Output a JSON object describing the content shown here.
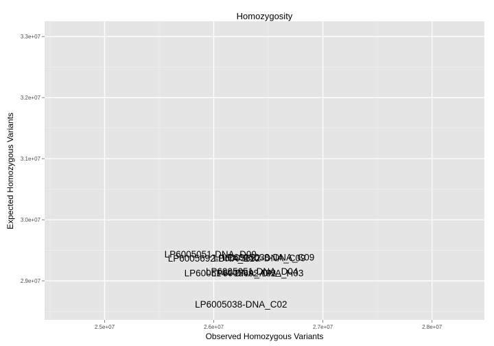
{
  "chart_data": {
    "type": "scatter",
    "title": "Homozygosity",
    "xlabel": "Observed Homozygous Variants",
    "ylabel": "Expected Homozygous Variants",
    "xlim": [
      24450000,
      28480000
    ],
    "ylim": [
      28360000,
      33250000
    ],
    "grid": true,
    "x_ticks": [
      {
        "value": 25000000,
        "label": "2.5e+07"
      },
      {
        "value": 26000000,
        "label": "2.6e+07"
      },
      {
        "value": 27000000,
        "label": "2.7e+07"
      },
      {
        "value": 28000000,
        "label": "2.8e+07"
      }
    ],
    "y_ticks": [
      {
        "value": 29000000,
        "label": "2.9e+07"
      },
      {
        "value": 30000000,
        "label": "3.0e+07"
      },
      {
        "value": 31000000,
        "label": "3.1e+07"
      },
      {
        "value": 32000000,
        "label": "3.2e+07"
      },
      {
        "value": 33000000,
        "label": "3.3e+07"
      }
    ],
    "points": [
      {
        "label": "LP6005051-DNA_D09",
        "x": 25970000,
        "y": 29440000
      },
      {
        "label": "LP6005692-DNA_E10",
        "x": 26000000,
        "y": 29370000
      },
      {
        "label": "LP6005692-DNA_C09",
        "x": 26420000,
        "y": 29380000
      },
      {
        "label": "LP6005038-DNA_C09",
        "x": 26500000,
        "y": 29390000
      },
      {
        "label": "LP6005051-DNA_D04",
        "x": 26350000,
        "y": 29160000
      },
      {
        "label": "LP6005692-DNA_H03",
        "x": 26400000,
        "y": 29130000
      },
      {
        "label": "LP6005144-DNA_A02",
        "x": 26150000,
        "y": 29130000
      },
      {
        "label": "LP6005038-DNA_C02",
        "x": 26250000,
        "y": 28620000
      }
    ]
  }
}
